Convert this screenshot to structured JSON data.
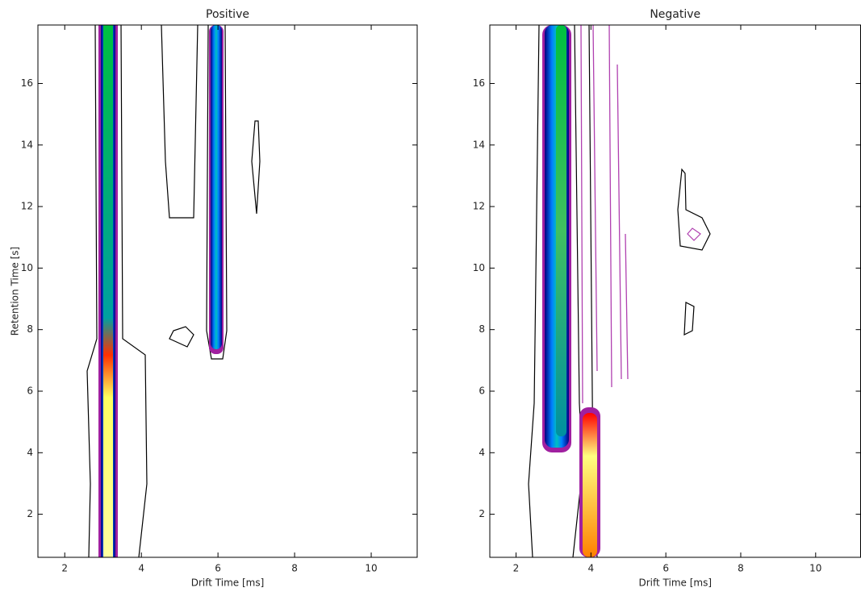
{
  "chart_data": [
    {
      "type": "contour",
      "title": "Positive",
      "x_label": "Drift Time [ms]",
      "y_label": "Retention Time [s]",
      "xlim": [
        1.3,
        11.2
      ],
      "ylim": [
        0.6,
        17.9
      ],
      "xticks": [
        2,
        4,
        6,
        8,
        10
      ],
      "yticks": [
        2,
        4,
        6,
        8,
        10,
        12,
        14,
        16
      ]
    },
    {
      "type": "contour",
      "title": "Negative",
      "x_label": "Drift Time [ms]",
      "xlim": [
        1.3,
        11.2
      ],
      "ylim": [
        0.6,
        17.9
      ],
      "xticks": [
        2,
        4,
        6,
        8,
        10
      ],
      "yticks": [
        2,
        4,
        6,
        8,
        10,
        12,
        14,
        16
      ]
    }
  ]
}
